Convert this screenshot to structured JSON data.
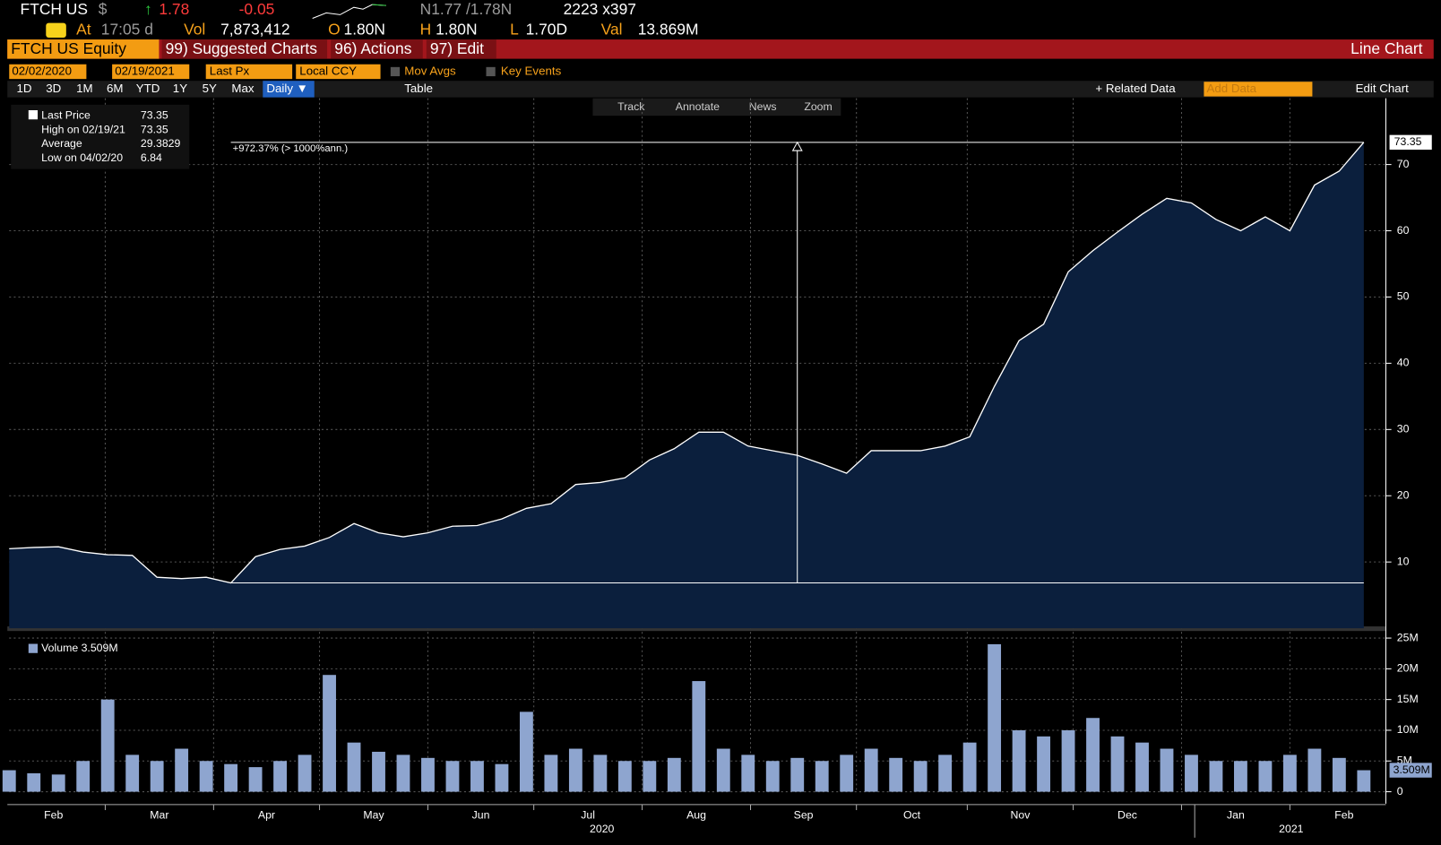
{
  "ui": {
    "quote": {
      "ticker": "FTCH US",
      "currency": "$",
      "arrow": "↑",
      "last": "1.78",
      "change": "-0.05",
      "bid_ask": "N1.77 /1.78N",
      "size": "2223 x397"
    },
    "stats": {
      "at_label": "At",
      "time": "17:05 d",
      "vol_label": "Vol",
      "vol": "7,873,412",
      "o_label": "O",
      "open": "1.80N",
      "h_label": "H",
      "high": "1.80N",
      "l_label": "L",
      "low": "1.70D",
      "val_label": "Val",
      "val": "13.869M"
    },
    "menu": {
      "security": "FTCH US Equity",
      "suggested": "99) Suggested Charts",
      "actions": "96) Actions",
      "edit": "97) Edit",
      "chart_type": "Line Chart"
    },
    "settings": {
      "start_date": "02/02/2020",
      "end_date": "02/19/2021",
      "field": "Last Px",
      "currency": "Local CCY",
      "mov_avgs": "Mov Avgs",
      "key_events": "Key Events"
    },
    "periods": [
      "1D",
      "3D",
      "1M",
      "6M",
      "YTD",
      "1Y",
      "5Y",
      "Max"
    ],
    "frequency": "Daily ▼",
    "table": "Table",
    "related": "+ Related Data",
    "add_data": "Add Data",
    "edit_chart": "Edit Chart",
    "tools": [
      "Track",
      "Annotate",
      "News",
      "Zoom"
    ]
  },
  "chart_data": [
    {
      "type": "area",
      "legend": [
        {
          "label": "Last Price",
          "value": "73.35"
        },
        {
          "label": "High on 02/19/21",
          "value": "73.35"
        },
        {
          "label": "Average",
          "value": "29.3829"
        },
        {
          "label": "Low on 04/02/20",
          "value": "6.84"
        }
      ],
      "annotation": {
        "label": "+972.37% (> 1000%ann.)"
      },
      "last_label": "73.35",
      "series": [
        {
          "name": "Last Price",
          "color": "#ffffff",
          "fill": "#0b1f3d",
          "values": [
            12.0,
            12.2,
            12.3,
            11.5,
            11.1,
            11.0,
            7.7,
            7.5,
            7.7,
            6.84,
            10.8,
            11.9,
            12.4,
            13.7,
            15.8,
            14.4,
            13.8,
            14.4,
            15.4,
            15.5,
            16.5,
            18.1,
            18.8,
            21.7,
            22.0,
            22.7,
            25.4,
            27.1,
            29.6,
            29.6,
            27.5,
            26.8,
            26.1,
            24.8,
            23.4,
            26.8,
            26.8,
            26.8,
            27.5,
            28.9,
            36.5,
            43.4,
            45.9,
            53.8,
            57.0,
            59.8,
            62.5,
            64.9,
            64.2,
            61.7,
            60.0,
            62.1,
            60.0,
            66.9,
            69.0,
            73.35
          ]
        }
      ],
      "xlim": [
        0,
        55
      ],
      "xticks": [
        {
          "value": -0.3,
          "label": "Feb"
        },
        {
          "value": 3.9,
          "label": "Mar"
        },
        {
          "value": 8.3,
          "label": "Apr"
        },
        {
          "value": 12.6,
          "label": "May"
        },
        {
          "value": 17.0,
          "label": "Jun"
        },
        {
          "value": 21.3,
          "label": "Jul"
        },
        {
          "value": 25.7,
          "label": "Aug"
        },
        {
          "value": 30.1,
          "label": "Sep"
        },
        {
          "value": 34.4,
          "label": "Oct"
        },
        {
          "value": 38.9,
          "label": "Nov"
        },
        {
          "value": 43.2,
          "label": "Dec"
        },
        {
          "value": 47.6,
          "label": "Jan"
        },
        {
          "value": 52.0,
          "label": "Feb"
        }
      ],
      "year_labels": [
        "2020",
        "2021"
      ],
      "ylim": [
        0,
        80
      ],
      "yticks": [
        10,
        20,
        30,
        40,
        50,
        60,
        70
      ],
      "grid": true
    },
    {
      "type": "bar",
      "legend": [
        {
          "label": "Volume 3.509M"
        }
      ],
      "last_label": "3.509M",
      "series": [
        {
          "name": "Volume",
          "color": "#8ea5cf",
          "values": [
            3.5,
            3,
            2.8,
            5,
            15,
            6,
            5,
            7,
            5,
            4.5,
            4,
            5,
            6,
            19,
            8,
            6.5,
            6,
            5.5,
            5,
            5,
            4.5,
            13,
            6,
            7,
            6,
            5,
            5,
            5.5,
            18,
            7,
            6,
            5,
            5.5,
            5,
            6,
            7,
            5.5,
            5,
            6,
            8,
            24,
            10,
            9,
            10,
            12,
            9,
            8,
            7,
            6,
            5,
            5,
            5,
            6,
            7,
            5.5,
            3.5
          ]
        }
      ],
      "xlim": [
        0,
        55
      ],
      "ylim": [
        0,
        26
      ],
      "yticks": [
        0,
        {
          "value": 5,
          "label": "5M"
        },
        {
          "value": 10,
          "label": "10M"
        },
        {
          "value": 15,
          "label": "15M"
        },
        {
          "value": 20,
          "label": "20M"
        },
        {
          "value": 25,
          "label": "25M"
        }
      ],
      "grid": true
    }
  ]
}
